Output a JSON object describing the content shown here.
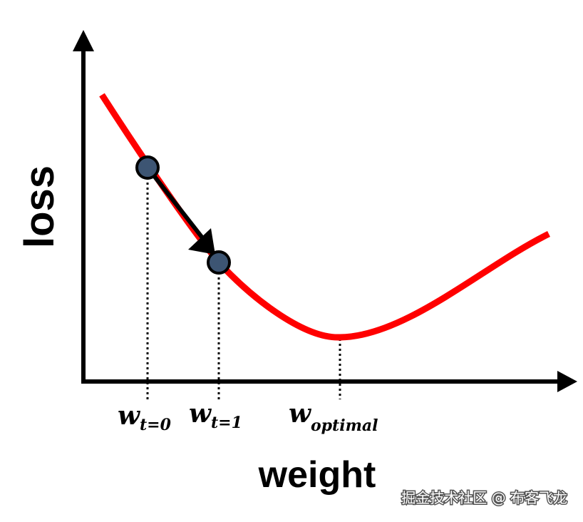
{
  "axes": {
    "y_label": "loss",
    "x_label": "weight"
  },
  "labels": [
    {
      "main": "w",
      "sub": "t=0"
    },
    {
      "main": "w",
      "sub": "t=1"
    },
    {
      "main": "w",
      "sub": "optimal"
    }
  ],
  "watermark": "掘金技术社区 @ 布客飞龙"
}
